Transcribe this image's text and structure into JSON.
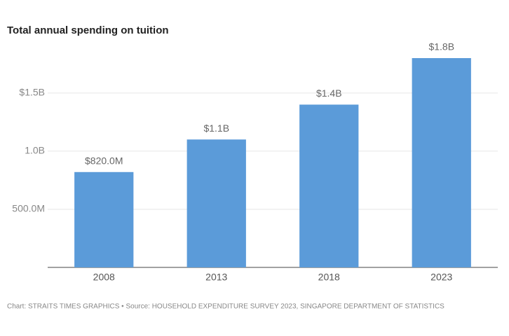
{
  "chart_data": {
    "type": "bar",
    "title": "Total annual spending on tuition",
    "categories": [
      "2008",
      "2013",
      "2018",
      "2023"
    ],
    "values": [
      820000000,
      1100000000,
      1400000000,
      1800000000
    ],
    "value_labels": [
      "$820.0M",
      "$1.1B",
      "$1.4B",
      "$1.8B"
    ],
    "color": "#5b9bd9",
    "ylim": [
      0,
      1800000000
    ],
    "yticks": [
      {
        "value": 500000000,
        "label": "500.0M"
      },
      {
        "value": 1000000000,
        "label": "1.0B"
      },
      {
        "value": 1500000000,
        "label": "$1.5B"
      }
    ],
    "grid": true,
    "source": "Chart: STRAITS TIMES GRAPHICS • Source: HOUSEHOLD EXPENDITURE SURVEY 2023, SINGAPORE DEPARTMENT OF STATISTICS"
  }
}
